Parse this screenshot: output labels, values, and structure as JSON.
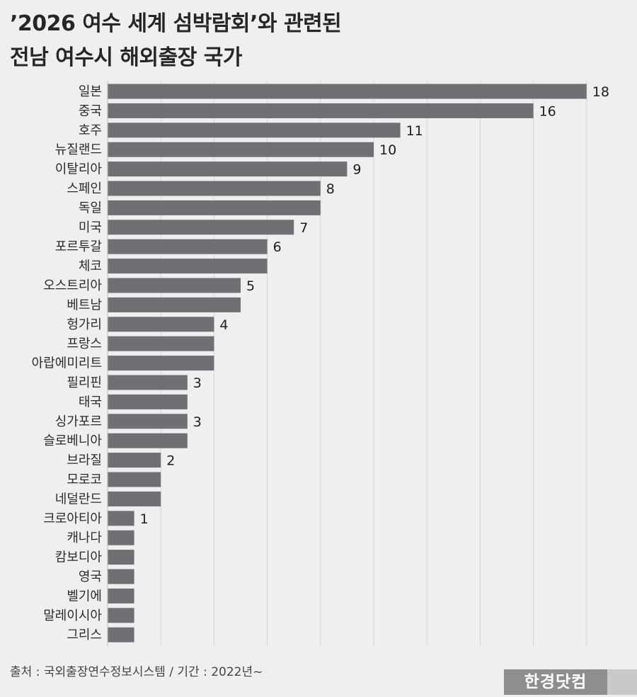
{
  "header": {
    "title_line1": "’2026 여수 세계 섬박람회’와 관련된",
    "title_line2": "전남 여수시 해외출장 국가"
  },
  "chart_data": {
    "type": "bar",
    "orientation": "horizontal",
    "title": "’2026 여수 세계 섬박람회’와 관련된 전남 여수시 해외출장 국가",
    "categories": [
      "일본",
      "중국",
      "호주",
      "뉴질랜드",
      "이탈리아",
      "스페인",
      "독일",
      "미국",
      "포르투갈",
      "체코",
      "오스트리아",
      "베트남",
      "헝가리",
      "프랑스",
      "아랍에미리트",
      "필리핀",
      "태국",
      "싱가포르",
      "슬로베니아",
      "브라질",
      "모로코",
      "네덜란드",
      "크로아티아",
      "캐나다",
      "캄보디아",
      "영국",
      "벨기에",
      "말레이시아",
      "그리스"
    ],
    "values": [
      18,
      16,
      11,
      10,
      9,
      8,
      8,
      7,
      6,
      6,
      5,
      5,
      4,
      4,
      4,
      3,
      3,
      3,
      3,
      2,
      2,
      2,
      1,
      1,
      1,
      1,
      1,
      1,
      1
    ],
    "value_labels": [
      "18",
      "16",
      "11",
      "10",
      "9",
      "8",
      "",
      "7",
      "6",
      "",
      "5",
      "",
      "4",
      "",
      "",
      "3",
      "",
      "3",
      "",
      "2",
      "",
      "",
      "1",
      "",
      "",
      "",
      "",
      "",
      ""
    ],
    "xlim": [
      0,
      18
    ],
    "grid": true,
    "bar_color": "#6f7074"
  },
  "footer": {
    "source": "출처 : 국외출장연수정보시스템 / 기간 : 2022년~",
    "logo_text": "한경닷컴"
  }
}
